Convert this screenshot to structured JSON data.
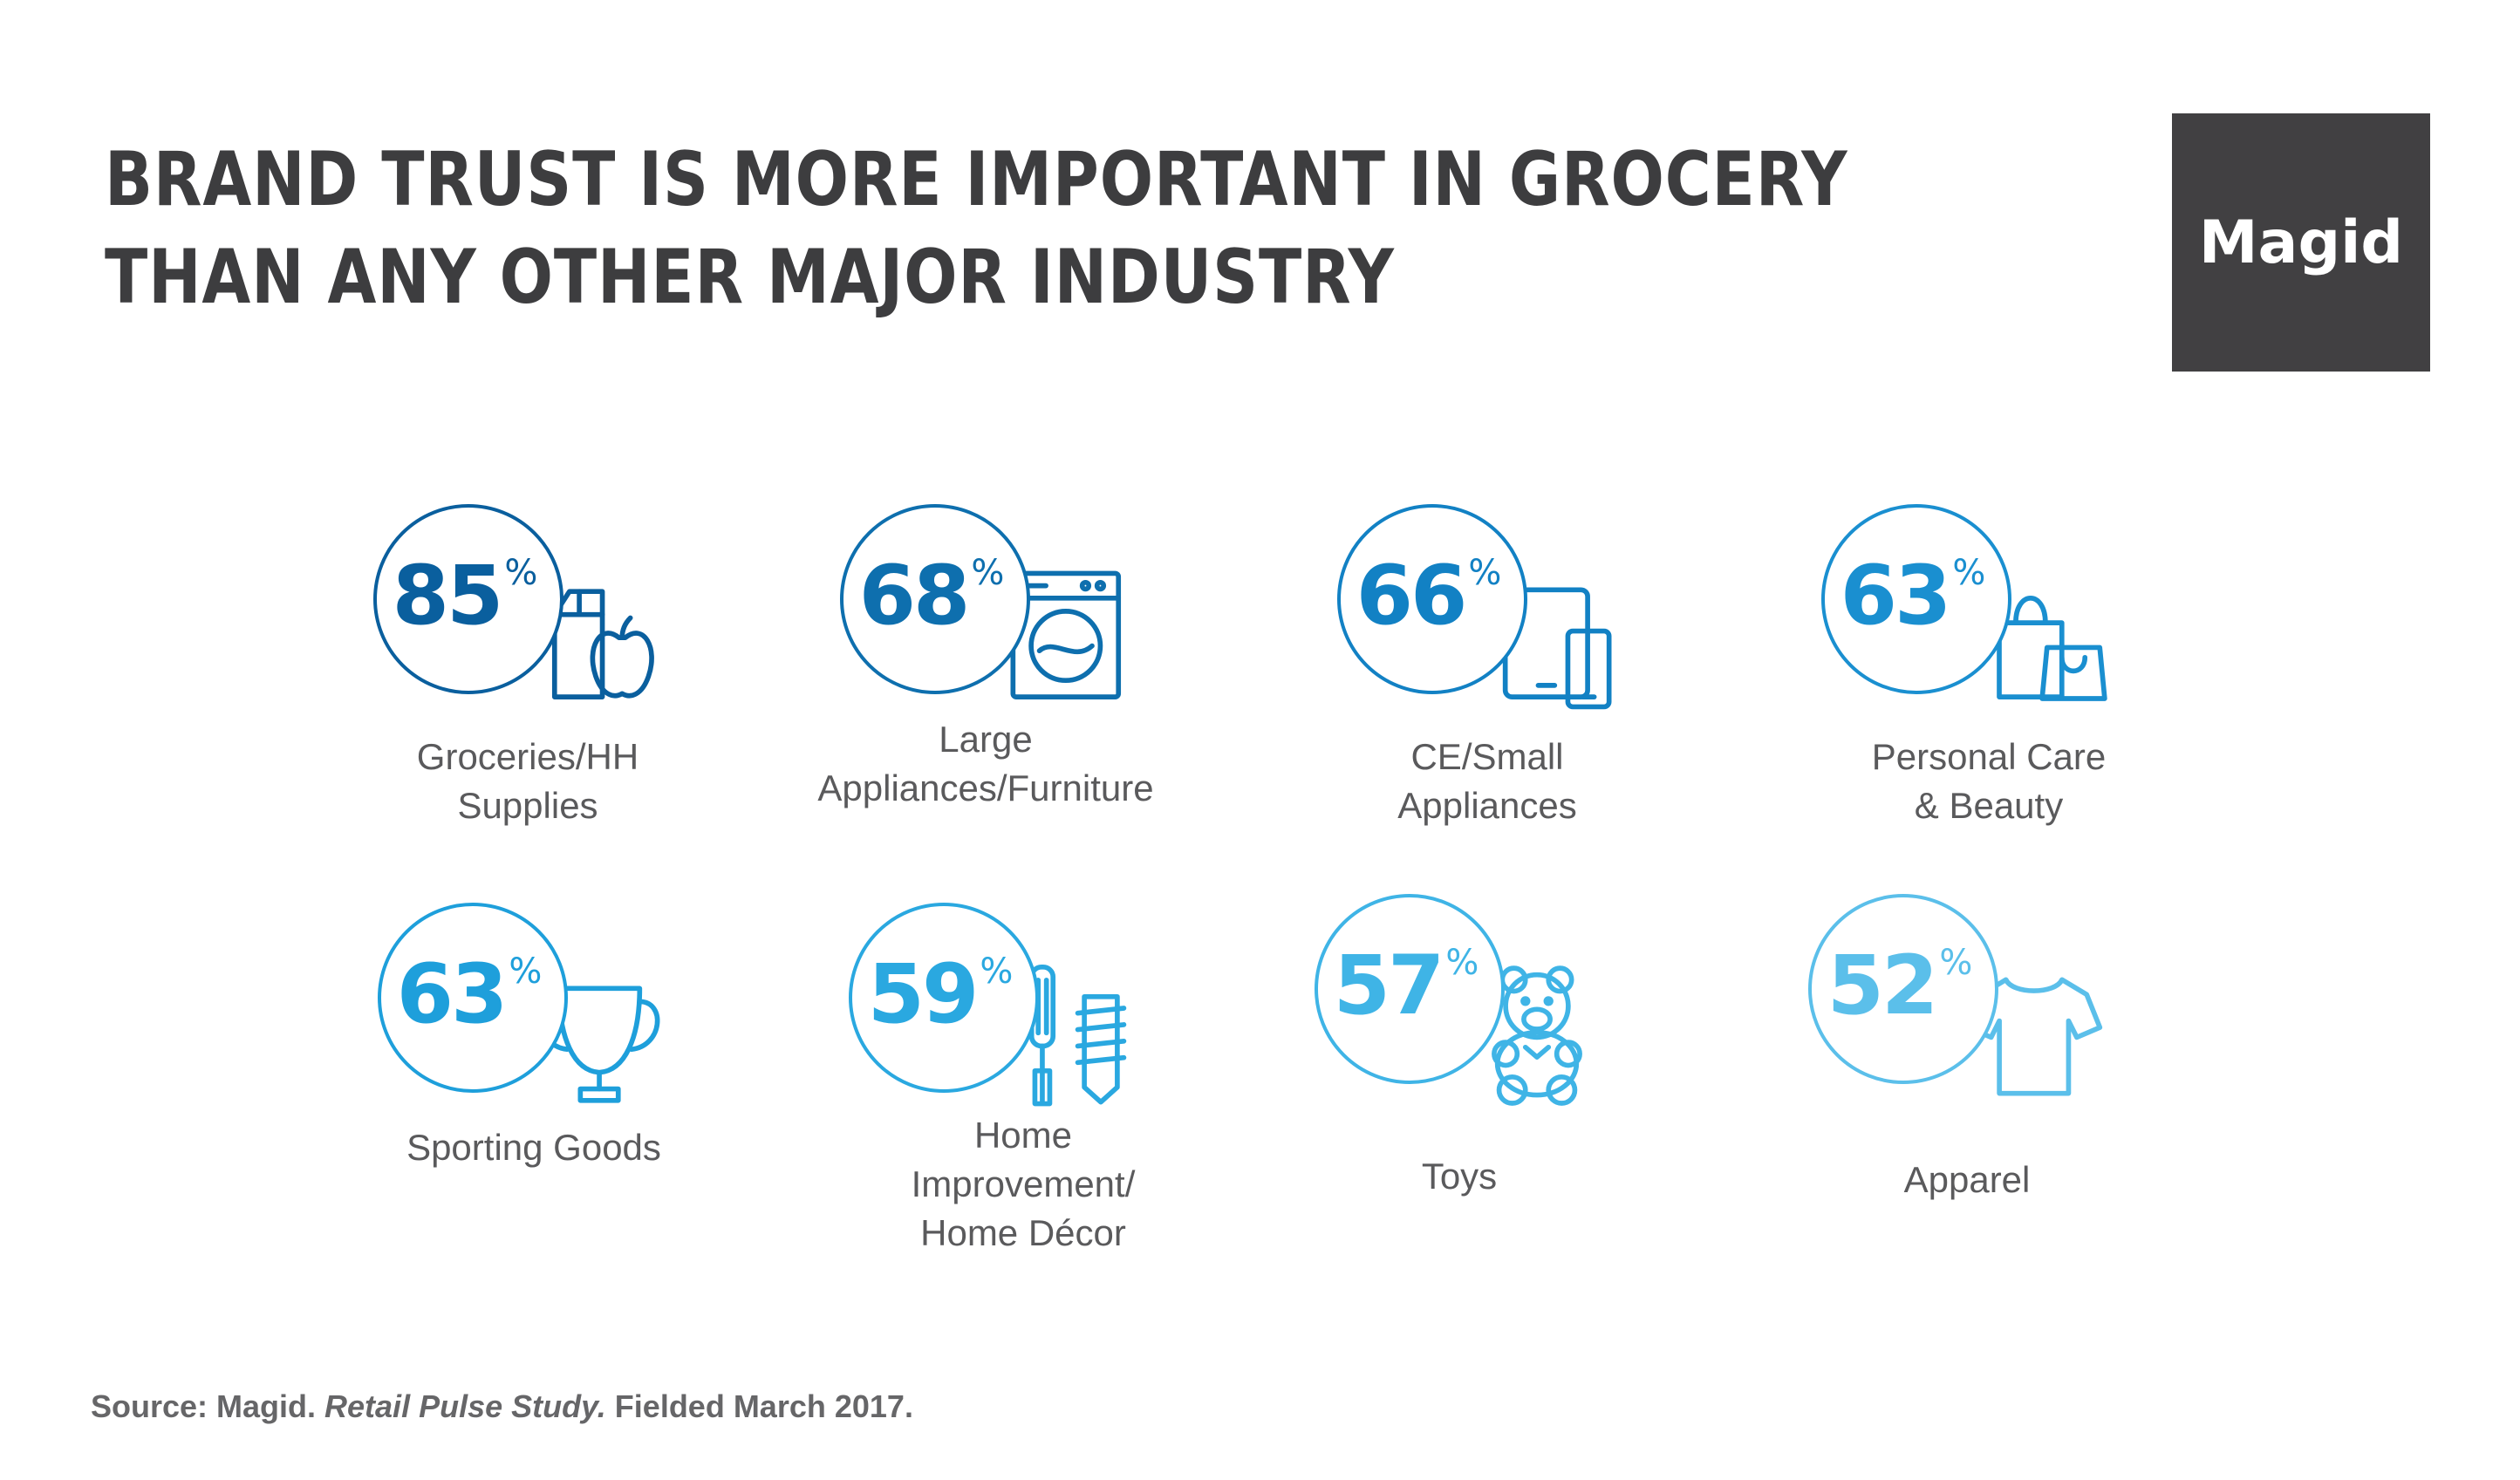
{
  "title": {
    "line1": "BRAND TRUST IS MORE IMPORTANT IN GROCERY",
    "line2": "THAN ANY OTHER MAJOR INDUSTRY"
  },
  "logo": {
    "text": "Magid"
  },
  "percent_sign": "%",
  "chart_data": {
    "type": "table",
    "unit": "%",
    "categories": [
      {
        "label_lines": [
          "Groceries/HH",
          "Supplies"
        ],
        "value": 85,
        "color": "#0a5f9e",
        "icon": "grocery-icon"
      },
      {
        "label_lines": [
          "Large",
          "Appliances/Furniture"
        ],
        "value": 68,
        "color": "#0e6fae",
        "icon": "washing-machine-icon"
      },
      {
        "label_lines": [
          "CE/Small",
          "Appliances"
        ],
        "value": 66,
        "color": "#1281c4",
        "icon": "tablet-phone-icon"
      },
      {
        "label_lines": [
          "Personal Care",
          "& Beauty"
        ],
        "value": 63,
        "color": "#1a8fd0",
        "icon": "shopping-bag-icon"
      },
      {
        "label_lines": [
          "Sporting Goods"
        ],
        "value": 63,
        "color": "#1e9fdb",
        "icon": "trophy-icon"
      },
      {
        "label_lines": [
          "Home",
          "Improvement/",
          "Home Décor"
        ],
        "value": 59,
        "color": "#2aa8e0",
        "icon": "tools-icon"
      },
      {
        "label_lines": [
          "Toys"
        ],
        "value": 57,
        "color": "#3fb4e6",
        "icon": "teddy-bear-icon"
      },
      {
        "label_lines": [
          "Apparel"
        ],
        "value": 52,
        "color": "#5bbfea",
        "icon": "tshirt-icon"
      }
    ]
  },
  "source": {
    "prefix": "Source: Magid. ",
    "study": "Retail Pulse Study.",
    "suffix": " Fielded March 2017."
  }
}
